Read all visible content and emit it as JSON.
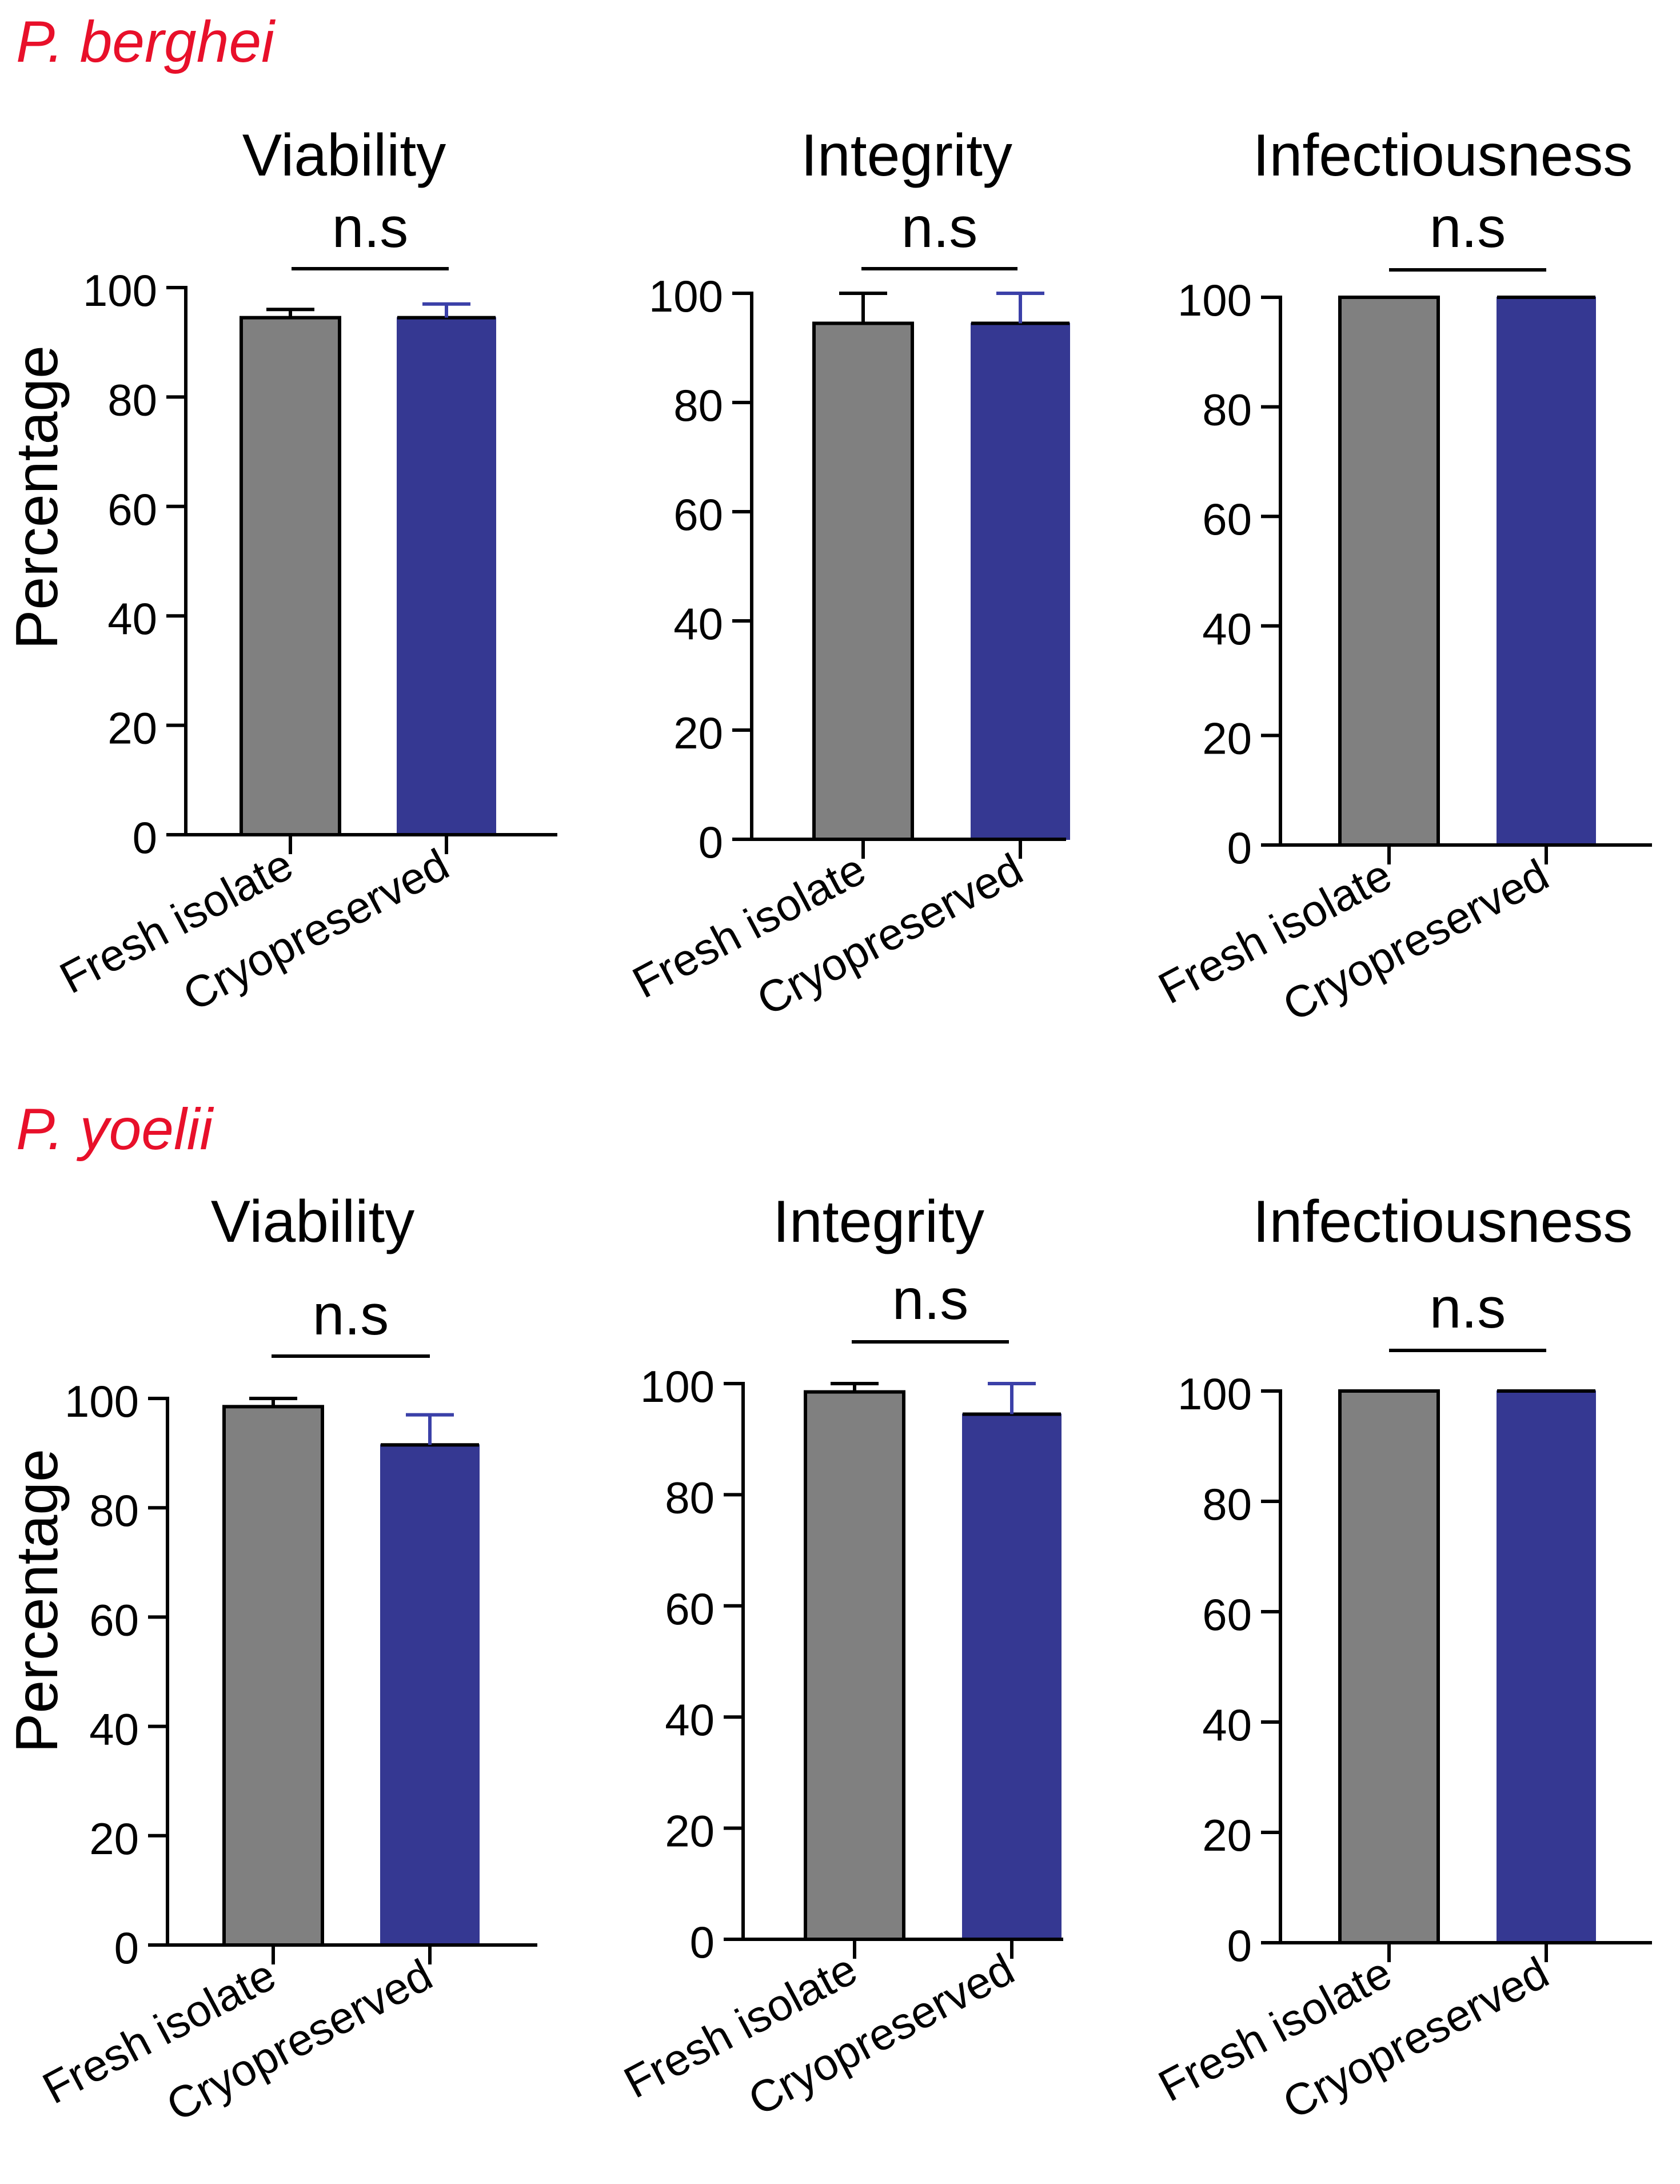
{
  "figure": {
    "colors": {
      "text": "#000000",
      "species_label": "#e8102a",
      "fresh_bar": "#808080",
      "cryo_bar": "#353892",
      "cryo_error": "#3b40a8"
    },
    "species": [
      {
        "label": "P. berghei"
      },
      {
        "label": "P. yoelii"
      }
    ],
    "common_labels": {
      "ylabel": "Percentage",
      "significance": "n.s"
    }
  },
  "chart_data": [
    {
      "type": "bar",
      "species": "P. berghei",
      "title": "Viability",
      "ylabel": "Percentage",
      "ylim": [
        0,
        100
      ],
      "yticks": [
        0,
        20,
        40,
        60,
        80,
        100
      ],
      "categories": [
        "Fresh isolate",
        "Cryopreserved"
      ],
      "values": [
        94.5,
        94.5
      ],
      "errors": [
        1.5,
        2.5
      ],
      "significance": "n.s"
    },
    {
      "type": "bar",
      "species": "P. berghei",
      "title": "Integrity",
      "ylabel": "",
      "ylim": [
        0,
        100
      ],
      "yticks": [
        0,
        20,
        40,
        60,
        80,
        100
      ],
      "categories": [
        "Fresh isolate",
        "Cryopreserved"
      ],
      "values": [
        94.5,
        94.5
      ],
      "errors": [
        5.5,
        5.5
      ],
      "significance": "n.s"
    },
    {
      "type": "bar",
      "species": "P. berghei",
      "title": "Infectiousness",
      "ylabel": "",
      "ylim": [
        0,
        100
      ],
      "yticks": [
        0,
        20,
        40,
        60,
        80,
        100
      ],
      "categories": [
        "Fresh isolate",
        "Cryopreserved"
      ],
      "values": [
        100,
        100
      ],
      "errors": [
        0,
        0
      ],
      "significance": "n.s"
    },
    {
      "type": "bar",
      "species": "P. yoelii",
      "title": "Viability",
      "ylabel": "Percentage",
      "ylim": [
        0,
        100
      ],
      "yticks": [
        0,
        20,
        40,
        60,
        80,
        100
      ],
      "categories": [
        "Fresh isolate",
        "Cryopreserved"
      ],
      "values": [
        98.5,
        91.5
      ],
      "errors": [
        1.5,
        5.5
      ],
      "significance": "n.s"
    },
    {
      "type": "bar",
      "species": "P. yoelii",
      "title": "Integrity",
      "ylabel": "",
      "ylim": [
        0,
        100
      ],
      "yticks": [
        0,
        20,
        40,
        60,
        80,
        100
      ],
      "categories": [
        "Fresh isolate",
        "Cryopreserved"
      ],
      "values": [
        98.5,
        94.5
      ],
      "errors": [
        1.5,
        5.5
      ],
      "significance": "n.s"
    },
    {
      "type": "bar",
      "species": "P. yoelii",
      "title": "Infectiousness",
      "ylabel": "",
      "ylim": [
        0,
        100
      ],
      "yticks": [
        0,
        20,
        40,
        60,
        80,
        100
      ],
      "categories": [
        "Fresh isolate",
        "Cryopreserved"
      ],
      "values": [
        100,
        100
      ],
      "errors": [
        0,
        0
      ],
      "significance": "n.s"
    }
  ]
}
